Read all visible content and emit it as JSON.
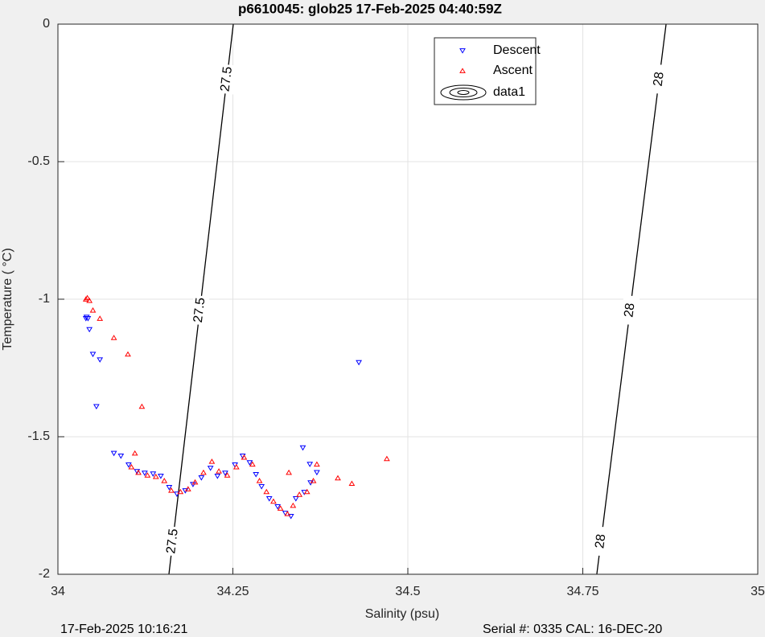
{
  "chart_data": {
    "type": "scatter",
    "title": "p6610045: glob25 17-Feb-2025 04:40:59Z",
    "xlabel": "Salinity (psu)",
    "ylabel": "Temperature (   °C)",
    "footer_left": "17-Feb-2025 10:16:21",
    "footer_right": "Serial #: 0335  CAL: 16-DEC-20",
    "xlim": [
      34,
      35
    ],
    "xticks": [
      34,
      34.25,
      34.5,
      34.75,
      35
    ],
    "ylim": [
      -2,
      0
    ],
    "yticks": [
      0,
      -0.5,
      -1,
      -1.5,
      -2
    ],
    "grid": true,
    "legend": "north",
    "series": [
      {
        "name": "Descent",
        "color": "#0000ff",
        "marker": "triangle-down",
        "x": [
          34.04,
          34.041,
          34.043,
          34.045,
          34.05,
          34.055,
          34.06,
          34.08,
          34.09,
          34.101,
          34.113,
          34.124,
          34.136,
          34.147,
          34.159,
          34.17,
          34.182,
          34.193,
          34.205,
          34.218,
          34.228,
          34.239,
          34.253,
          34.264,
          34.274,
          34.283,
          34.291,
          34.302,
          34.314,
          34.325,
          34.333,
          34.34,
          34.352,
          34.361,
          34.35,
          34.36,
          34.37,
          34.43
        ],
        "values": [
          -1.07,
          -1.065,
          -1.07,
          -1.11,
          -1.2,
          -1.39,
          -1.22,
          -1.56,
          -1.57,
          -1.602,
          -1.626,
          -1.632,
          -1.635,
          -1.643,
          -1.684,
          -1.708,
          -1.696,
          -1.673,
          -1.649,
          -1.614,
          -1.643,
          -1.632,
          -1.602,
          -1.57,
          -1.594,
          -1.637,
          -1.681,
          -1.725,
          -1.754,
          -1.778,
          -1.789,
          -1.725,
          -1.702,
          -1.667,
          -1.54,
          -1.6,
          -1.63,
          -1.23
        ]
      },
      {
        "name": "Ascent",
        "color": "#ff0000",
        "marker": "triangle-up",
        "x": [
          34.04,
          34.042,
          34.045,
          34.05,
          34.06,
          34.08,
          34.1,
          34.12,
          34.11,
          34.105,
          34.115,
          34.128,
          34.14,
          34.152,
          34.162,
          34.175,
          34.186,
          34.196,
          34.208,
          34.22,
          34.23,
          34.242,
          34.255,
          34.266,
          34.278,
          34.288,
          34.298,
          34.308,
          34.318,
          34.328,
          34.336,
          34.345,
          34.356,
          34.365,
          34.33,
          34.37,
          34.4,
          34.42,
          34.47
        ],
        "values": [
          -1.0,
          -0.995,
          -1.005,
          -1.04,
          -1.07,
          -1.14,
          -1.2,
          -1.39,
          -1.56,
          -1.61,
          -1.63,
          -1.64,
          -1.645,
          -1.66,
          -1.695,
          -1.7,
          -1.69,
          -1.665,
          -1.63,
          -1.59,
          -1.625,
          -1.64,
          -1.61,
          -1.575,
          -1.6,
          -1.66,
          -1.7,
          -1.735,
          -1.76,
          -1.78,
          -1.75,
          -1.71,
          -1.7,
          -1.66,
          -1.63,
          -1.6,
          -1.65,
          -1.67,
          -1.58
        ]
      }
    ],
    "contour_legend": "data1",
    "contours": [
      {
        "level": 27.5,
        "x": [
          34.2506,
          34.1586
        ],
        "y": [
          0,
          -2
        ]
      },
      {
        "level": 28,
        "x": [
          34.869,
          34.77
        ],
        "y": [
          0,
          -2
        ]
      }
    ]
  }
}
